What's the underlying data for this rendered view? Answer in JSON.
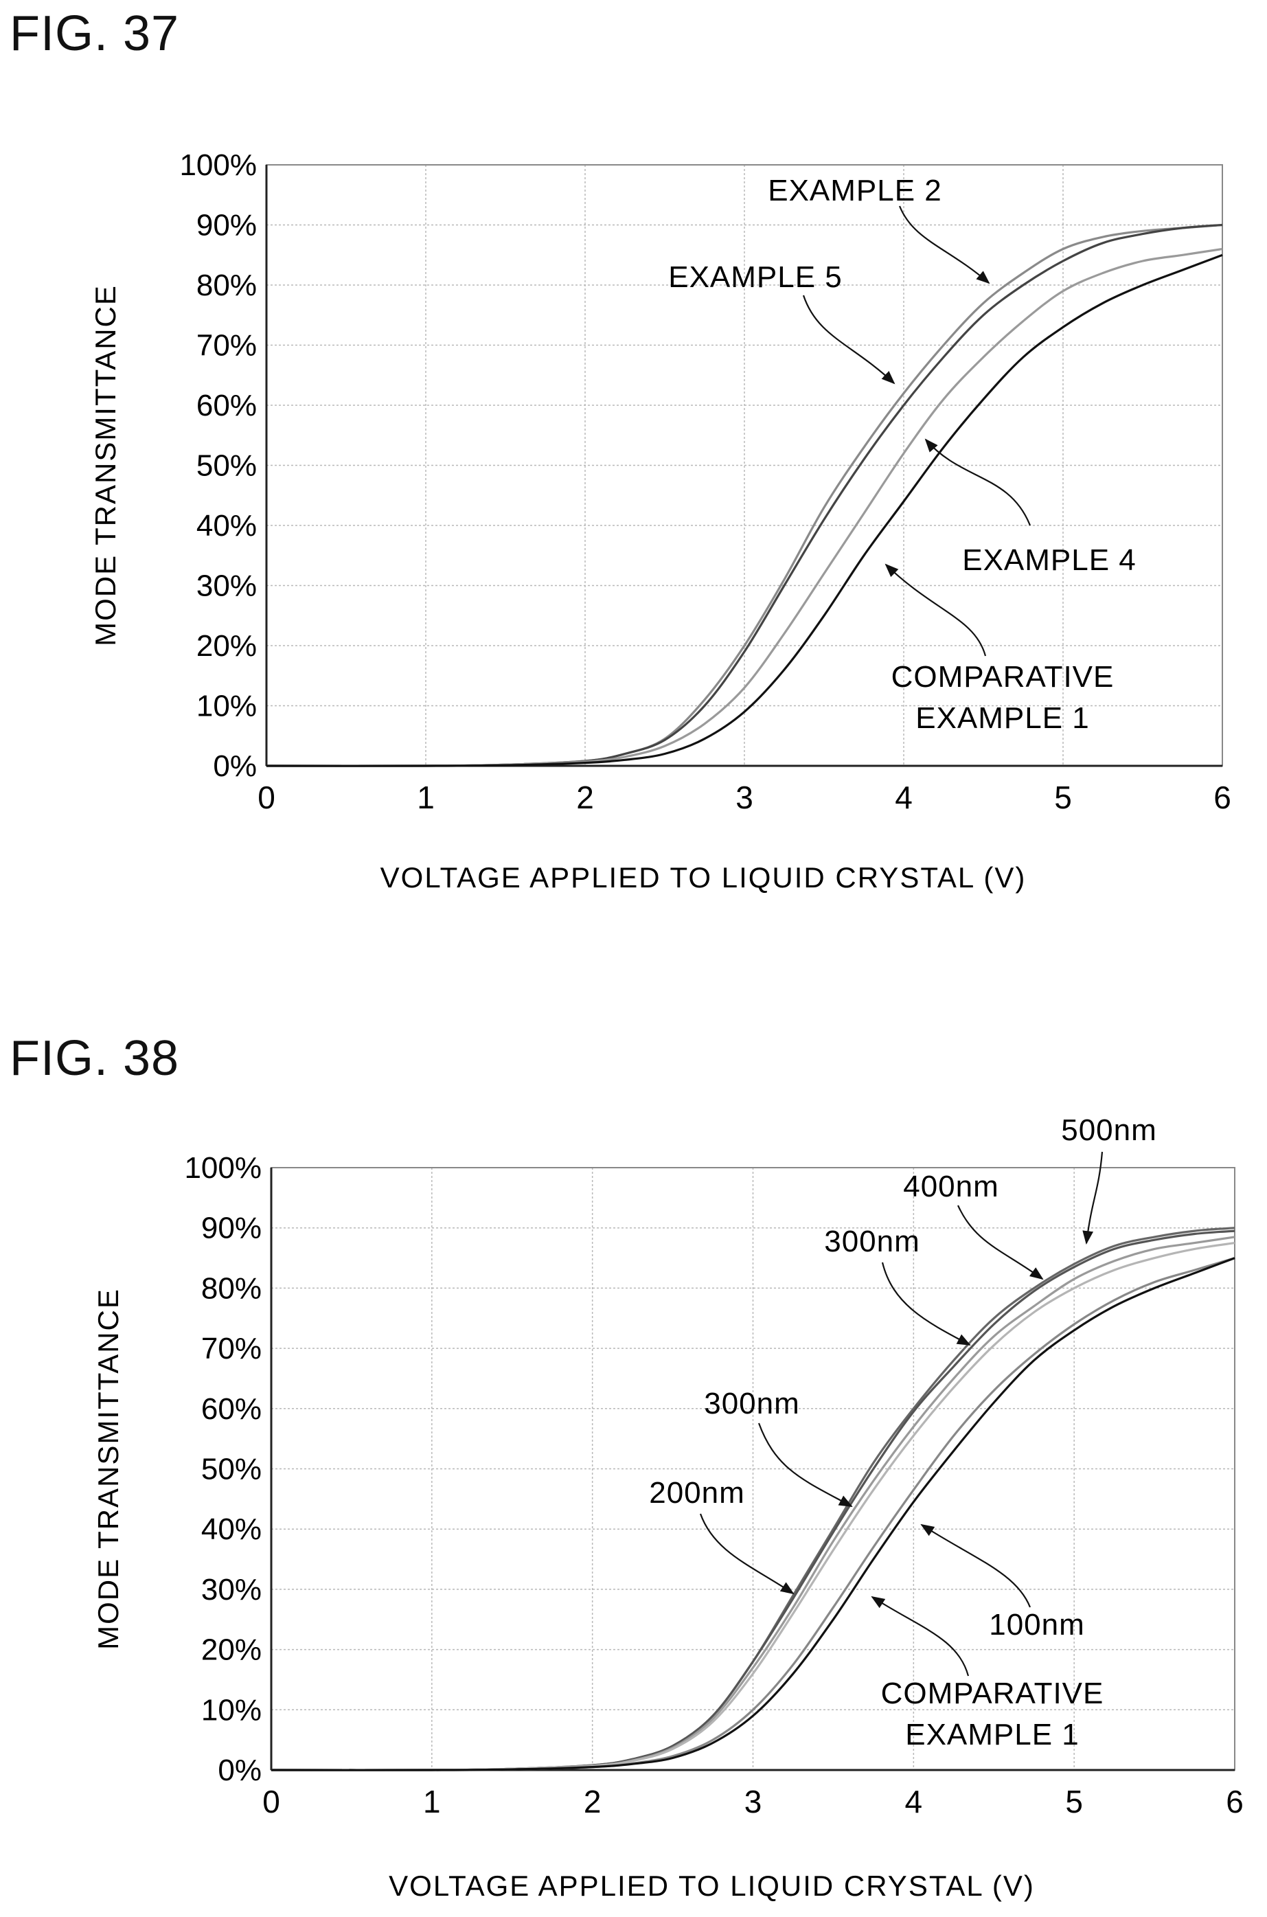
{
  "chart_data": [
    {
      "figure_label": "FIG. 37",
      "type": "line",
      "xlabel": "VOLTAGE APPLIED TO LIQUID CRYSTAL (V)",
      "ylabel": "MODE TRANSMITTANCE",
      "xlim": [
        0,
        6
      ],
      "ylim": [
        0,
        100
      ],
      "x_ticks": [
        "0",
        "1",
        "2",
        "3",
        "4",
        "5",
        "6"
      ],
      "y_ticks": [
        "0%",
        "10%",
        "20%",
        "30%",
        "40%",
        "50%",
        "60%",
        "70%",
        "80%",
        "90%",
        "100%"
      ],
      "grid": true,
      "series": [
        {
          "name": "EXAMPLE 5",
          "color": "#8a8a8a",
          "x": [
            0,
            1,
            1.5,
            2,
            2.25,
            2.5,
            2.75,
            3,
            3.25,
            3.5,
            3.75,
            4,
            4.25,
            4.5,
            4.75,
            5,
            5.25,
            5.5,
            5.75,
            6
          ],
          "values": [
            0,
            0,
            0.2,
            0.8,
            2,
            4.5,
            11,
            20,
            31,
            43,
            53,
            62,
            70,
            77,
            82,
            86,
            88,
            89,
            89.5,
            90
          ]
        },
        {
          "name": "EXAMPLE 2",
          "color": "#444444",
          "x": [
            0,
            1,
            1.5,
            2,
            2.25,
            2.5,
            2.75,
            3,
            3.25,
            3.5,
            3.75,
            4,
            4.25,
            4.5,
            4.75,
            5,
            5.25,
            5.5,
            5.75,
            6
          ],
          "values": [
            0,
            0,
            0.2,
            0.8,
            2,
            4.3,
            10,
            19,
            30,
            41,
            51,
            60,
            68,
            75,
            80,
            84,
            87,
            88.5,
            89.5,
            90
          ]
        },
        {
          "name": "EXAMPLE 4",
          "color": "#9a9a9a",
          "x": [
            0,
            1,
            1.5,
            2,
            2.25,
            2.5,
            2.75,
            3,
            3.25,
            3.5,
            3.75,
            4,
            4.25,
            4.5,
            4.75,
            5,
            5.25,
            5.5,
            5.75,
            6
          ],
          "values": [
            0,
            0,
            0.2,
            0.7,
            1.5,
            3.3,
            7,
            13,
            22,
            32,
            42,
            52,
            61,
            68,
            74,
            79,
            82,
            84,
            85,
            86
          ]
        },
        {
          "name": "COMPARATIVE EXAMPLE 1",
          "color": "#111111",
          "x": [
            0,
            1,
            1.5,
            2,
            2.25,
            2.5,
            2.75,
            3,
            3.25,
            3.5,
            3.75,
            4,
            4.25,
            4.5,
            4.75,
            5,
            5.25,
            5.5,
            5.75,
            6
          ],
          "values": [
            0,
            0,
            0.1,
            0.5,
            1,
            2,
            4.5,
            9,
            16,
            25,
            35,
            44,
            53,
            61,
            68,
            73,
            77,
            80,
            82.5,
            85
          ]
        }
      ],
      "annotations": [
        {
          "text": "EXAMPLE 2"
        },
        {
          "text": "EXAMPLE 5"
        },
        {
          "text": "EXAMPLE 4"
        },
        {
          "text": "COMPARATIVE"
        },
        {
          "text": "EXAMPLE 1"
        }
      ]
    },
    {
      "figure_label": "FIG. 38",
      "type": "line",
      "xlabel": "VOLTAGE APPLIED TO LIQUID CRYSTAL (V)",
      "ylabel": "MODE TRANSMITTANCE",
      "xlim": [
        0,
        6
      ],
      "ylim": [
        0,
        100
      ],
      "x_ticks": [
        "0",
        "1",
        "2",
        "3",
        "4",
        "5",
        "6"
      ],
      "y_ticks": [
        "0%",
        "10%",
        "20%",
        "30%",
        "40%",
        "50%",
        "60%",
        "70%",
        "80%",
        "90%",
        "100%"
      ],
      "grid": true,
      "series": [
        {
          "name": "500nm",
          "color": "#666666",
          "x": [
            0,
            1,
            1.5,
            2,
            2.25,
            2.5,
            2.75,
            3,
            3.25,
            3.5,
            3.75,
            4,
            4.25,
            4.5,
            4.75,
            5,
            5.25,
            5.5,
            5.75,
            6
          ],
          "values": [
            0,
            0,
            0.2,
            0.8,
            1.8,
            4,
            9,
            18,
            29,
            40,
            51,
            60,
            68,
            75,
            80,
            84,
            87,
            88.5,
            89.5,
            90
          ]
        },
        {
          "name": "400nm",
          "color": "#555555",
          "x": [
            0,
            1,
            1.5,
            2,
            2.25,
            2.5,
            2.75,
            3,
            3.25,
            3.5,
            3.75,
            4,
            4.25,
            4.5,
            4.75,
            5,
            5.25,
            5.5,
            5.75,
            6
          ],
          "values": [
            0,
            0,
            0.2,
            0.8,
            1.8,
            4,
            9,
            18,
            28.5,
            39.5,
            50,
            59.5,
            67,
            74,
            79.5,
            83.5,
            86.5,
            88,
            89,
            89.5
          ]
        },
        {
          "name": "300nm",
          "color": "#9a9a9a",
          "x": [
            0,
            1,
            1.5,
            2,
            2.25,
            2.5,
            2.75,
            3,
            3.25,
            3.5,
            3.75,
            4,
            4.25,
            4.5,
            4.75,
            5,
            5.25,
            5.5,
            5.75,
            6
          ],
          "values": [
            0,
            0,
            0.2,
            0.7,
            1.6,
            3.7,
            8.5,
            17,
            27,
            38,
            48,
            57,
            65,
            72,
            77,
            81.5,
            84.5,
            86.5,
            87.5,
            88.5
          ]
        },
        {
          "name": "200nm",
          "color": "#b5b5b5",
          "x": [
            0,
            1,
            1.5,
            2,
            2.25,
            2.5,
            2.75,
            3,
            3.25,
            3.5,
            3.75,
            4,
            4.25,
            4.5,
            4.75,
            5,
            5.25,
            5.5,
            5.75,
            6
          ],
          "values": [
            0,
            0,
            0.2,
            0.7,
            1.5,
            3.5,
            8,
            16,
            26,
            36.5,
            46.5,
            55.5,
            63.5,
            70.5,
            76,
            80,
            83,
            85,
            86.5,
            87.5
          ]
        },
        {
          "name": "100nm",
          "color": "#888888",
          "x": [
            0,
            1,
            1.5,
            2,
            2.25,
            2.5,
            2.75,
            3,
            3.25,
            3.5,
            3.75,
            4,
            4.25,
            4.5,
            4.75,
            5,
            5.25,
            5.5,
            5.75,
            6
          ],
          "values": [
            0,
            0,
            0.1,
            0.5,
            1.1,
            2.3,
            5,
            10,
            17.5,
            27,
            37,
            46.5,
            55.5,
            63,
            69,
            74,
            78,
            81,
            83,
            85
          ]
        },
        {
          "name": "COMPARATIVE EXAMPLE 1",
          "color": "#111111",
          "x": [
            0,
            1,
            1.5,
            2,
            2.25,
            2.5,
            2.75,
            3,
            3.25,
            3.5,
            3.75,
            4,
            4.25,
            4.5,
            4.75,
            5,
            5.25,
            5.5,
            5.75,
            6
          ],
          "values": [
            0,
            0,
            0.1,
            0.5,
            1,
            2,
            4.5,
            9,
            16,
            25,
            35,
            44.5,
            53,
            61,
            68,
            73,
            77,
            80,
            82.5,
            85
          ]
        }
      ],
      "annotations": [
        {
          "text": "500nm"
        },
        {
          "text": "400nm"
        },
        {
          "text": "300nm"
        },
        {
          "text": "300nm"
        },
        {
          "text": "200nm"
        },
        {
          "text": "100nm"
        },
        {
          "text": "COMPARATIVE"
        },
        {
          "text": "EXAMPLE 1"
        }
      ]
    }
  ]
}
